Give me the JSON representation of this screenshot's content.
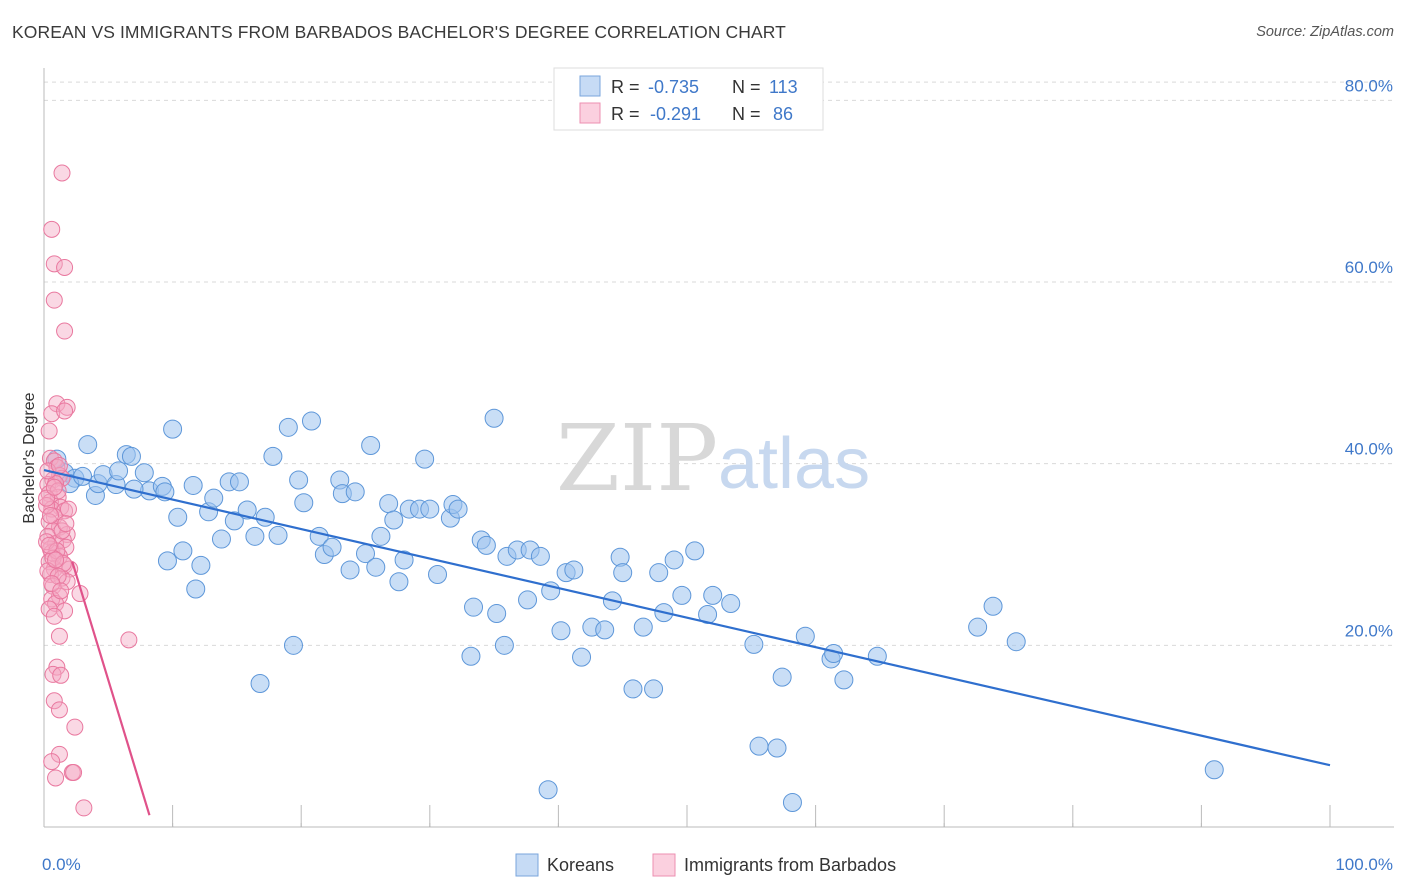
{
  "title": "KOREAN VS IMMIGRANTS FROM BARBADOS BACHELOR'S DEGREE CORRELATION CHART",
  "source": "Source: ZipAtlas.com",
  "watermark": {
    "zip": "ZIP",
    "atlas": "atlas"
  },
  "legend_top": {
    "rows": [
      {
        "r_label": "R =",
        "r_value": "-0.735",
        "n_label": "N =",
        "n_value": "113",
        "color": "#9dc3ee"
      },
      {
        "r_label": "R =",
        "r_value": "-0.291",
        "n_label": "N =",
        "n_value": "86",
        "color": "#f4a8c4"
      }
    ]
  },
  "chart_data": {
    "type": "scatter",
    "title": "KOREAN VS IMMIGRANTS FROM BARBADOS BACHELOR'S DEGREE CORRELATION CHART",
    "xlabel": "",
    "ylabel": "Bachelor's Degree",
    "xlim": [
      0,
      100
    ],
    "ylim": [
      0,
      84
    ],
    "x_tick_labels": [
      "0.0%",
      "100.0%"
    ],
    "y_ticks": [
      20,
      40,
      60,
      80
    ],
    "y_tick_labels": [
      "20.0%",
      "40.0%",
      "60.0%",
      "80.0%"
    ],
    "grid": true,
    "legend_position": "top-center",
    "series": [
      {
        "name": "Koreans",
        "color": "#9dc3ee",
        "line_color": "#2f6fce",
        "trend": {
          "x": [
            0,
            100
          ],
          "y": [
            39.3,
            6.8
          ]
        },
        "points": [
          [
            1.6,
            39.0
          ],
          [
            2.4,
            38.4
          ],
          [
            3.4,
            42.1
          ],
          [
            4.0,
            36.5
          ],
          [
            4.2,
            37.8
          ],
          [
            4.6,
            38.8
          ],
          [
            5.6,
            37.7
          ],
          [
            5.8,
            39.2
          ],
          [
            6.4,
            41.0
          ],
          [
            6.8,
            40.8
          ],
          [
            7.8,
            39.0
          ],
          [
            8.2,
            37.0
          ],
          [
            9.2,
            37.5
          ],
          [
            9.4,
            36.9
          ],
          [
            9.6,
            29.3
          ],
          [
            10.0,
            43.8
          ],
          [
            10.4,
            34.1
          ],
          [
            10.8,
            30.4
          ],
          [
            11.6,
            37.6
          ],
          [
            11.8,
            26.2
          ],
          [
            12.2,
            28.8
          ],
          [
            12.8,
            34.7
          ],
          [
            13.2,
            36.2
          ],
          [
            13.8,
            31.7
          ],
          [
            14.4,
            38.0
          ],
          [
            14.8,
            33.7
          ],
          [
            15.2,
            38.0
          ],
          [
            15.8,
            34.9
          ],
          [
            16.4,
            32.0
          ],
          [
            16.8,
            15.8
          ],
          [
            17.2,
            34.1
          ],
          [
            17.8,
            40.8
          ],
          [
            18.2,
            32.1
          ],
          [
            19.0,
            44.0
          ],
          [
            19.4,
            20.0
          ],
          [
            19.8,
            38.2
          ],
          [
            20.2,
            35.7
          ],
          [
            20.8,
            44.7
          ],
          [
            21.4,
            32.0
          ],
          [
            21.8,
            30.0
          ],
          [
            22.4,
            30.8
          ],
          [
            23.0,
            38.2
          ],
          [
            23.2,
            36.7
          ],
          [
            23.8,
            28.3
          ],
          [
            24.2,
            36.9
          ],
          [
            25.0,
            30.1
          ],
          [
            25.4,
            42.0
          ],
          [
            25.8,
            28.6
          ],
          [
            26.2,
            32.0
          ],
          [
            26.8,
            35.6
          ],
          [
            27.2,
            33.8
          ],
          [
            27.6,
            27.0
          ],
          [
            28.0,
            29.4
          ],
          [
            28.4,
            35.0
          ],
          [
            29.2,
            35.0
          ],
          [
            29.6,
            40.5
          ],
          [
            30.0,
            35.0
          ],
          [
            30.6,
            27.8
          ],
          [
            31.6,
            34.0
          ],
          [
            31.8,
            35.5
          ],
          [
            32.2,
            35.0
          ],
          [
            33.2,
            18.8
          ],
          [
            33.4,
            24.2
          ],
          [
            34.0,
            31.6
          ],
          [
            34.4,
            31.0
          ],
          [
            35.0,
            45.0
          ],
          [
            35.2,
            23.5
          ],
          [
            35.8,
            20.0
          ],
          [
            36.0,
            29.8
          ],
          [
            36.8,
            30.5
          ],
          [
            37.6,
            25.0
          ],
          [
            37.8,
            30.5
          ],
          [
            38.6,
            29.8
          ],
          [
            39.2,
            4.1
          ],
          [
            39.4,
            26.0
          ],
          [
            40.2,
            21.6
          ],
          [
            40.6,
            28.0
          ],
          [
            41.2,
            28.3
          ],
          [
            41.8,
            18.7
          ],
          [
            42.6,
            22.0
          ],
          [
            43.6,
            21.7
          ],
          [
            44.2,
            24.9
          ],
          [
            44.8,
            29.7
          ],
          [
            45.0,
            28.0
          ],
          [
            45.8,
            15.2
          ],
          [
            46.6,
            22.0
          ],
          [
            47.4,
            15.2
          ],
          [
            47.8,
            28.0
          ],
          [
            48.2,
            23.6
          ],
          [
            49.0,
            29.4
          ],
          [
            49.6,
            25.5
          ],
          [
            50.6,
            30.4
          ],
          [
            51.6,
            23.4
          ],
          [
            52.0,
            25.5
          ],
          [
            53.4,
            24.6
          ],
          [
            55.2,
            20.1
          ],
          [
            55.6,
            8.9
          ],
          [
            57.0,
            8.7
          ],
          [
            57.4,
            16.5
          ],
          [
            58.2,
            2.7
          ],
          [
            59.2,
            21.0
          ],
          [
            61.2,
            18.5
          ],
          [
            61.4,
            19.1
          ],
          [
            62.2,
            16.2
          ],
          [
            64.8,
            18.8
          ],
          [
            72.6,
            22.0
          ],
          [
            73.8,
            24.3
          ],
          [
            75.6,
            20.4
          ],
          [
            91.0,
            6.3
          ],
          [
            1.0,
            40.5
          ],
          [
            2.0,
            37.8
          ],
          [
            3.0,
            38.6
          ],
          [
            7.0,
            37.2
          ]
        ]
      },
      {
        "name": "Immigrants from Barbados",
        "color": "#f4a8c4",
        "line_color": "#e0528a",
        "trend": {
          "x": [
            2.2,
            8.2
          ],
          "y": [
            29.2,
            1.3
          ]
        },
        "points": [
          [
            1.4,
            72.0
          ],
          [
            0.6,
            65.8
          ],
          [
            0.8,
            62.0
          ],
          [
            1.6,
            61.6
          ],
          [
            0.8,
            58.0
          ],
          [
            1.6,
            54.6
          ],
          [
            1.0,
            46.6
          ],
          [
            1.8,
            46.2
          ],
          [
            0.6,
            45.5
          ],
          [
            1.6,
            45.8
          ],
          [
            0.4,
            43.6
          ],
          [
            0.5,
            40.6
          ],
          [
            0.8,
            40.3
          ],
          [
            1.0,
            39.6
          ],
          [
            1.2,
            38.7
          ],
          [
            0.7,
            38.2
          ],
          [
            1.4,
            38.4
          ],
          [
            0.3,
            37.7
          ],
          [
            0.9,
            37.8
          ],
          [
            0.4,
            36.7
          ],
          [
            1.1,
            36.3
          ],
          [
            0.5,
            35.8
          ],
          [
            1.3,
            35.2
          ],
          [
            0.6,
            35.0
          ],
          [
            1.6,
            34.8
          ],
          [
            0.8,
            34.2
          ],
          [
            0.4,
            33.6
          ],
          [
            1.2,
            33.0
          ],
          [
            0.7,
            32.6
          ],
          [
            1.8,
            32.2
          ],
          [
            0.3,
            32.0
          ],
          [
            1.5,
            31.6
          ],
          [
            0.9,
            31.2
          ],
          [
            0.5,
            30.6
          ],
          [
            1.7,
            30.8
          ],
          [
            0.6,
            30.2
          ],
          [
            1.2,
            29.8
          ],
          [
            0.4,
            29.2
          ],
          [
            1.6,
            28.8
          ],
          [
            0.8,
            28.4
          ],
          [
            2.0,
            28.4
          ],
          [
            0.5,
            27.8
          ],
          [
            1.4,
            27.4
          ],
          [
            1.8,
            27.0
          ],
          [
            0.7,
            26.5
          ],
          [
            2.8,
            25.7
          ],
          [
            1.2,
            25.4
          ],
          [
            0.6,
            25.1
          ],
          [
            0.9,
            24.6
          ],
          [
            0.4,
            24.0
          ],
          [
            1.6,
            23.8
          ],
          [
            0.8,
            23.2
          ],
          [
            1.2,
            21.0
          ],
          [
            6.6,
            20.6
          ],
          [
            1.0,
            17.6
          ],
          [
            0.7,
            16.8
          ],
          [
            1.3,
            16.7
          ],
          [
            0.8,
            13.9
          ],
          [
            1.2,
            12.9
          ],
          [
            2.4,
            11.0
          ],
          [
            1.2,
            8.0
          ],
          [
            0.6,
            7.2
          ],
          [
            2.2,
            6.0
          ],
          [
            2.3,
            6.0
          ],
          [
            0.9,
            5.4
          ],
          [
            3.1,
            2.1
          ],
          [
            0.3,
            39.2
          ],
          [
            1.1,
            37.0
          ],
          [
            0.2,
            35.4
          ],
          [
            1.9,
            35.0
          ],
          [
            0.5,
            34.3
          ],
          [
            1.4,
            32.6
          ],
          [
            0.2,
            31.4
          ],
          [
            1.0,
            30.4
          ],
          [
            0.7,
            29.6
          ],
          [
            1.5,
            29.0
          ],
          [
            0.3,
            28.2
          ],
          [
            1.1,
            27.6
          ],
          [
            0.6,
            26.8
          ],
          [
            1.3,
            26.0
          ],
          [
            0.9,
            29.4
          ],
          [
            0.4,
            31.0
          ],
          [
            1.7,
            33.4
          ],
          [
            0.2,
            36.2
          ],
          [
            0.8,
            37.4
          ],
          [
            1.2,
            39.8
          ]
        ]
      }
    ]
  },
  "legend_bottom": {
    "items": [
      {
        "label": "Koreans",
        "color": "#9dc3ee"
      },
      {
        "label": "Immigrants from Barbados",
        "color": "#f4a8c4"
      }
    ]
  }
}
